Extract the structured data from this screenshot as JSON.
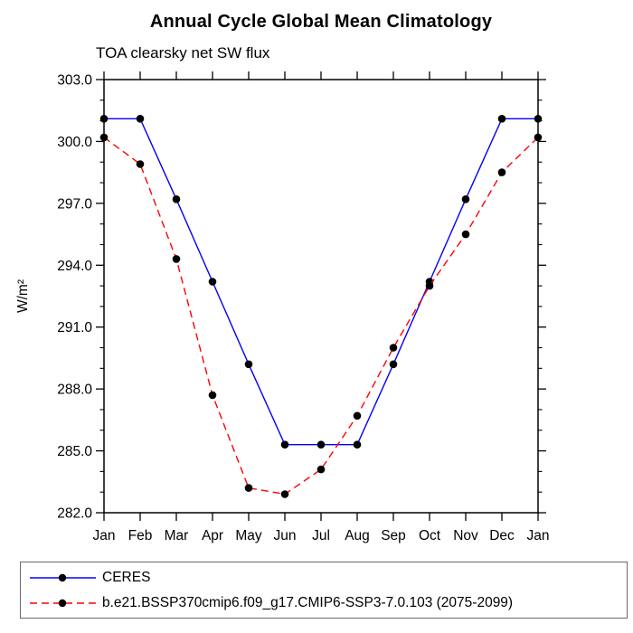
{
  "title": "Annual Cycle Global Mean Climatology",
  "subtitle": "TOA clearsky net SW flux",
  "colors": {
    "axis": "#000000",
    "ceres_line": "#0000ff",
    "model_line": "#ff0000",
    "marker": "#000000",
    "background": "#ffffff"
  },
  "chart_data": {
    "type": "line",
    "title": "Annual Cycle Global Mean Climatology",
    "subtitle": "TOA clearsky net SW flux",
    "xlabel": "",
    "ylabel": "W/m²",
    "x_categories": [
      "Jan",
      "Feb",
      "Mar",
      "Apr",
      "May",
      "Jun",
      "Jul",
      "Aug",
      "Sep",
      "Oct",
      "Nov",
      "Dec",
      "Jan"
    ],
    "ylim": [
      282.0,
      303.0
    ],
    "y_major_tick_step": 3.0,
    "y_minor_tick_step": 1.0,
    "y_major_tick_labels": [
      "282.0",
      "285.0",
      "288.0",
      "291.0",
      "294.0",
      "297.0",
      "300.0",
      "303.0"
    ],
    "grid": false,
    "legend_position": "bottom-left-box",
    "series": [
      {
        "name": "CERES",
        "color": "#0000ff",
        "line_style": "solid",
        "marker": "circle",
        "marker_color": "#000000",
        "values": [
          301.1,
          301.1,
          297.2,
          293.2,
          289.2,
          285.3,
          285.3,
          285.3,
          289.2,
          293.2,
          297.2,
          301.1,
          301.1
        ]
      },
      {
        "name": "b.e21.BSSP370cmip6.f09_g17.CMIP6-SSP3-7.0.103 (2075-2099)",
        "color": "#ff0000",
        "line_style": "dashed",
        "marker": "circle",
        "marker_color": "#000000",
        "values": [
          300.2,
          298.9,
          294.3,
          287.7,
          283.2,
          282.9,
          284.1,
          286.7,
          290.0,
          293.0,
          295.5,
          298.5,
          300.2
        ]
      }
    ]
  }
}
